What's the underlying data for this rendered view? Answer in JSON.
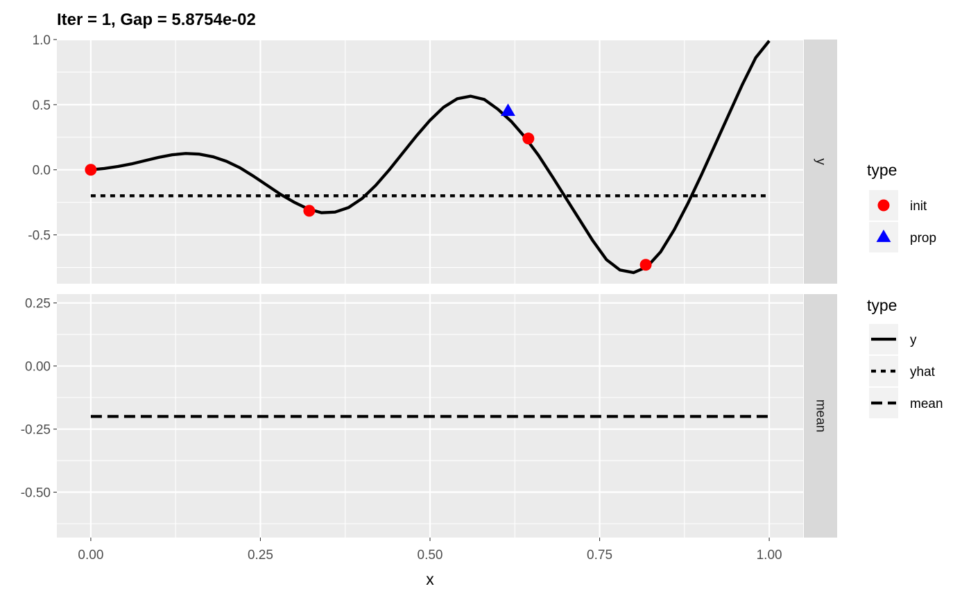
{
  "chart_data": {
    "type": "line",
    "title": "Iter = 1, Gap = 5.8754e-02",
    "xlabel": "x",
    "x_ticks": [
      "0.00",
      "0.25",
      "0.50",
      "0.75",
      "1.00"
    ],
    "xlim": [
      -0.05,
      1.05
    ],
    "grid": true,
    "panels": [
      {
        "strip": "y",
        "ylim": [
          -0.875,
          1.0
        ],
        "y_ticks": [
          {
            "value": 1.0,
            "label": "1.0"
          },
          {
            "value": 0.5,
            "label": "0.5"
          },
          {
            "value": 0.0,
            "label": "0.0"
          },
          {
            "value": -0.5,
            "label": "-0.5"
          }
        ],
        "series": [
          {
            "name": "y",
            "style": "solid",
            "x": [
              0.0,
              0.02,
              0.04,
              0.06,
              0.08,
              0.1,
              0.12,
              0.14,
              0.16,
              0.18,
              0.2,
              0.22,
              0.24,
              0.26,
              0.28,
              0.3,
              0.32,
              0.34,
              0.36,
              0.38,
              0.4,
              0.42,
              0.44,
              0.46,
              0.48,
              0.5,
              0.52,
              0.54,
              0.56,
              0.58,
              0.6,
              0.62,
              0.64,
              0.66,
              0.68,
              0.7,
              0.72,
              0.74,
              0.76,
              0.78,
              0.8,
              0.82,
              0.84,
              0.86,
              0.88,
              0.9,
              0.92,
              0.94,
              0.96,
              0.98,
              1.0
            ],
            "y": [
              0.0,
              0.01,
              0.025,
              0.045,
              0.07,
              0.095,
              0.115,
              0.125,
              0.12,
              0.1,
              0.065,
              0.015,
              -0.05,
              -0.12,
              -0.19,
              -0.25,
              -0.3,
              -0.33,
              -0.325,
              -0.29,
              -0.22,
              -0.12,
              0.0,
              0.13,
              0.26,
              0.38,
              0.48,
              0.545,
              0.565,
              0.54,
              0.465,
              0.37,
              0.25,
              0.11,
              -0.05,
              -0.215,
              -0.38,
              -0.545,
              -0.69,
              -0.77,
              -0.79,
              -0.745,
              -0.63,
              -0.46,
              -0.26,
              -0.04,
              0.19,
              0.42,
              0.65,
              0.86,
              0.99
            ]
          },
          {
            "name": "yhat",
            "style": "dotted",
            "x": [
              0.0,
              1.0
            ],
            "y": [
              -0.2,
              -0.2
            ]
          }
        ],
        "points": [
          {
            "type": "init",
            "x": 0.0,
            "y": 0.0
          },
          {
            "type": "init",
            "x": 0.322,
            "y": -0.315
          },
          {
            "type": "init",
            "x": 0.645,
            "y": 0.24
          },
          {
            "type": "init",
            "x": 0.818,
            "y": -0.73
          },
          {
            "type": "prop",
            "x": 0.615,
            "y": 0.45
          }
        ]
      },
      {
        "strip": "mean",
        "ylim": [
          -0.68,
          0.285
        ],
        "y_ticks": [
          {
            "value": 0.25,
            "label": "0.25"
          },
          {
            "value": 0.0,
            "label": "0.00"
          },
          {
            "value": -0.25,
            "label": "-0.25"
          },
          {
            "value": -0.5,
            "label": "-0.50"
          }
        ],
        "series": [
          {
            "name": "mean",
            "style": "dashed",
            "x": [
              0.0,
              1.0
            ],
            "y": [
              -0.2,
              -0.2
            ]
          }
        ],
        "points": []
      }
    ],
    "legends": [
      {
        "title": "type",
        "items": [
          {
            "label": "init",
            "shape": "circle",
            "color": "#ff0000"
          },
          {
            "label": "prop",
            "shape": "triangle",
            "color": "#0000ff"
          }
        ]
      },
      {
        "title": "type",
        "items": [
          {
            "label": "y",
            "linetype": "solid"
          },
          {
            "label": "yhat",
            "linetype": "dotted"
          },
          {
            "label": "mean",
            "linetype": "dashed"
          }
        ]
      }
    ],
    "colors": {
      "panel_bg": "#ebebeb",
      "strip_bg": "#d9d9d9",
      "grid": "#ffffff",
      "line": "#000000",
      "init": "#ff0000",
      "prop": "#0000ff"
    }
  }
}
